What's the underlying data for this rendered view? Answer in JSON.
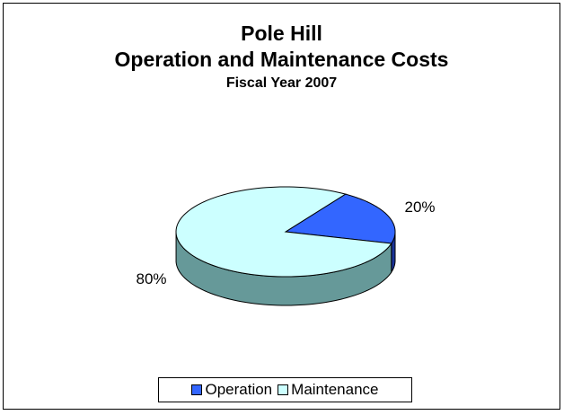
{
  "chart_data": {
    "type": "pie",
    "title": "Pole Hill",
    "subtitle": "Operation and Maintenance Costs",
    "subtitle2": "Fiscal Year 2007",
    "slices": [
      {
        "label": "Operation",
        "value": 20,
        "display": "20%",
        "color": "#3366ff",
        "side_color": "#1a3399"
      },
      {
        "label": "Maintenance",
        "value": 80,
        "display": "80%",
        "color": "#ccffff",
        "side_color": "#669999"
      }
    ],
    "legend_position": "bottom"
  }
}
